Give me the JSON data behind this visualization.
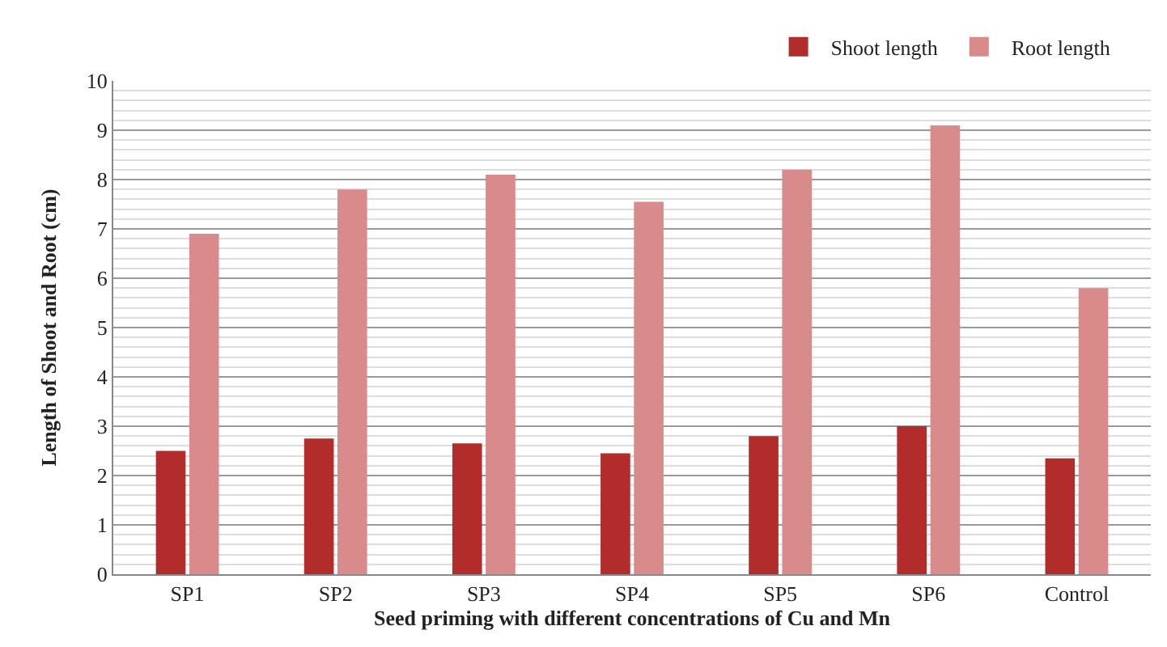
{
  "chart_data": {
    "type": "bar",
    "xlabel": "Seed priming with different concentrations of Cu and Mn",
    "ylabel": "Length of Shoot and Root (cm)",
    "categories": [
      "SP1",
      "SP2",
      "SP3",
      "SP4",
      "SP5",
      "SP6",
      "Control"
    ],
    "series": [
      {
        "name": "Shoot length",
        "color": "#b22c2c",
        "values": [
          2.5,
          2.75,
          2.65,
          2.45,
          2.8,
          3.0,
          2.35
        ]
      },
      {
        "name": "Root length",
        "color": "#d98b8b",
        "values": [
          6.9,
          7.8,
          8.1,
          7.55,
          8.2,
          9.1,
          5.8
        ]
      }
    ],
    "ylim": [
      0,
      10
    ],
    "yticks": [
      0,
      1,
      2,
      3,
      4,
      5,
      6,
      7,
      8,
      9,
      10
    ],
    "grid": "y",
    "legend": "top"
  }
}
